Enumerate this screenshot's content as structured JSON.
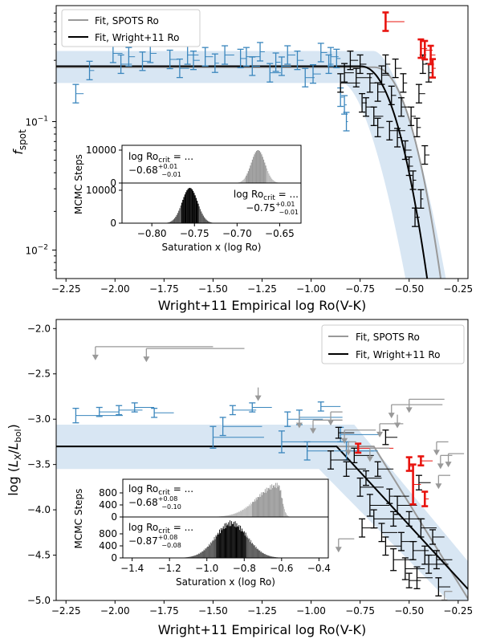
{
  "chart_data": [
    {
      "type": "scatter",
      "panel": "top",
      "xlabel": "Wright+11 Empirical log Ro(V-K)",
      "ylabel": "f_spot",
      "xlim": [
        -2.3,
        -0.2
      ],
      "ylim": [
        0.006,
        0.8
      ],
      "yscale": "log",
      "x_ticks": [
        "-2.25",
        "-2.00",
        "-1.75",
        "-1.50",
        "-1.25",
        "-1.00",
        "-0.75",
        "-0.50",
        "-0.25"
      ],
      "y_ticks": [
        {
          "value": 0.1,
          "label": "10^-1"
        },
        {
          "value": 0.01,
          "label": "10^-2"
        }
      ],
      "legend": {
        "position": "top-left",
        "entries": [
          {
            "label": "Fit, SPOTS Ro",
            "color": "#999999"
          },
          {
            "label": "Fit, Wright+11 Ro",
            "color": "#000000"
          }
        ]
      },
      "colors": {
        "blue": "#3a86bd",
        "black": "#000000",
        "red": "#e8140f",
        "gray": "#999999",
        "band": "#c8dbee"
      },
      "fits": [
        {
          "name": "Fit, SPOTS Ro",
          "color": "#999999",
          "sat": 0.265,
          "x_crit": -0.68,
          "x_end": -0.26
        },
        {
          "name": "Fit, Wright+11 Ro",
          "color": "#000000",
          "sat": 0.27,
          "x_crit": -0.75,
          "x_end": -0.33
        }
      ],
      "band": {
        "low": 0.2,
        "high": 0.355
      },
      "series": [
        {
          "group": "blue",
          "points": [
            [
              -2.2,
              0.165,
              0.1
            ],
            [
              -2.13,
              0.25,
              0.06
            ],
            [
              -2.01,
              0.34,
              0.12
            ],
            [
              -1.93,
              0.32,
              0.08
            ],
            [
              -1.86,
              0.295,
              0.1
            ],
            [
              -1.82,
              0.34,
              0.08
            ],
            [
              -1.72,
              0.305,
              0.1
            ],
            [
              -1.67,
              0.26,
              0.12
            ],
            [
              -1.6,
              0.3,
              0.08
            ],
            [
              -1.54,
              0.32,
              0.1
            ],
            [
              -1.49,
              0.285,
              0.05
            ],
            [
              -1.44,
              0.33,
              0.12
            ],
            [
              -1.36,
              0.31,
              0.08
            ],
            [
              -1.3,
              0.27,
              0.1
            ],
            [
              -1.26,
              0.35,
              0.06
            ],
            [
              -1.21,
              0.24,
              0.14
            ],
            [
              -1.18,
              0.29,
              0.06
            ],
            [
              -1.12,
              0.33,
              0.1
            ],
            [
              -1.07,
              0.3,
              0.08
            ],
            [
              -1.03,
              0.22,
              0.12
            ],
            [
              -0.99,
              0.235,
              0.1
            ],
            [
              -0.95,
              0.345,
              0.08
            ],
            [
              -0.91,
              0.28,
              0.06
            ],
            [
              -0.87,
              0.31,
              0.05
            ],
            [
              -0.85,
              0.155,
              0.04
            ],
            [
              -0.83,
              0.135,
              0.03
            ],
            [
              -0.82,
              0.1,
              0.02
            ],
            [
              -1.97,
              0.28,
              0.14
            ],
            [
              -1.63,
              0.33,
              0.14
            ],
            [
              -1.33,
              0.32,
              0.18
            ],
            [
              -1.15,
              0.27,
              0.12
            ],
            [
              -0.9,
              0.32,
              0.1
            ]
          ]
        },
        {
          "group": "black",
          "points": [
            [
              -0.85,
              0.2,
              0.25
            ],
            [
              -0.83,
              0.24,
              0.12
            ],
            [
              -0.8,
              0.3,
              0.1
            ],
            [
              -0.77,
              0.22,
              0.2
            ],
            [
              -0.75,
              0.28,
              0.08
            ],
            [
              -0.72,
              0.13,
              0.1
            ],
            [
              -0.7,
              0.2,
              0.08
            ],
            [
              -0.68,
              0.11,
              0.12
            ],
            [
              -0.66,
              0.09,
              0.08
            ],
            [
              -0.64,
              0.23,
              0.1
            ],
            [
              -0.62,
              0.28,
              0.06
            ],
            [
              -0.6,
              0.085,
              0.2
            ],
            [
              -0.59,
              0.16,
              0.06
            ],
            [
              -0.57,
              0.26,
              0.08
            ],
            [
              -0.56,
              0.075,
              0.06
            ],
            [
              -0.54,
              0.13,
              0.1
            ],
            [
              -0.53,
              0.2,
              0.05
            ],
            [
              -0.52,
              0.06,
              0.08
            ],
            [
              -0.5,
              0.045,
              0.05
            ],
            [
              -0.49,
              0.11,
              0.06
            ],
            [
              -0.48,
              0.035,
              0.04
            ],
            [
              -0.47,
              0.018,
              0.06
            ],
            [
              -0.46,
              0.09,
              0.05
            ],
            [
              -0.45,
              0.165,
              0.08
            ],
            [
              -0.44,
              0.025,
              0.03
            ],
            [
              -0.43,
              0.28,
              0.05
            ],
            [
              -0.42,
              0.055,
              0.06
            ],
            [
              -0.4,
              0.24,
              0.04
            ],
            [
              -0.74,
              0.14,
              0.06
            ],
            [
              -0.66,
              0.17,
              0.1
            ]
          ]
        },
        {
          "group": "red",
          "points": [
            [
              -0.62,
              0.6,
              0.24
            ],
            [
              -0.44,
              0.37,
              0.08
            ],
            [
              -0.42,
              0.36,
              0.1
            ],
            [
              -0.39,
              0.33,
              0.06
            ],
            [
              -0.38,
              0.26,
              0.04
            ]
          ]
        }
      ],
      "inset": {
        "ylabel": "MCMC Steps",
        "xlabel": "Saturation x (log Ro)",
        "xlim": [
          -0.835,
          -0.625
        ],
        "x_ticks": [
          "-0.80",
          "-0.75",
          "-0.70",
          "-0.65"
        ],
        "y_ticks": [
          "0",
          "10000"
        ],
        "upper": {
          "label": "log Ro_crit = ...",
          "value": "-0.68",
          "plus": "+0.01",
          "minus": "-0.01",
          "color": "#999999",
          "mode": -0.676,
          "sigma": 0.008,
          "lo": -0.69,
          "hi": -0.666
        },
        "lower": {
          "label": "log Ro_crit = ...",
          "value": "-0.75",
          "plus": "+0.01",
          "minus": "-0.01",
          "color": "#000000",
          "mode": -0.756,
          "sigma": 0.009,
          "lo": -0.766,
          "hi": -0.746
        }
      }
    },
    {
      "type": "scatter",
      "panel": "bottom",
      "xlabel": "Wright+11 Empirical log Ro(V-K)",
      "ylabel": "log (L_X/L_bol)",
      "xlim": [
        -2.3,
        -0.2
      ],
      "ylim": [
        -5.0,
        -1.9
      ],
      "x_ticks": [
        "-2.25",
        "-2.00",
        "-1.75",
        "-1.50",
        "-1.25",
        "-1.00",
        "-0.75",
        "-0.50",
        "-0.25"
      ],
      "y_ticks": [
        "-2.0",
        "-2.5",
        "-3.0",
        "-3.5",
        "-4.0",
        "-4.5",
        "-5.0"
      ],
      "legend": {
        "position": "top-right",
        "entries": [
          {
            "label": "Fit, SPOTS Ro",
            "color": "#999999"
          },
          {
            "label": "Fit, Wright+11 Ro",
            "color": "#000000"
          }
        ]
      },
      "fits": [
        {
          "name": "Fit, SPOTS Ro",
          "color": "#999999",
          "sat": -3.3,
          "x_crit": -0.68,
          "x_end": -0.2,
          "slope": -3.5
        },
        {
          "name": "Fit, Wright+11 Ro",
          "color": "#000000",
          "sat": -3.3,
          "x_crit": -0.87,
          "x_end": -0.2,
          "slope": -2.35
        }
      ],
      "band": {
        "low": -3.55,
        "high": -3.06,
        "x_crit": -0.87,
        "x_end": -0.2,
        "slope": -2.35
      },
      "series": [
        {
          "group": "blue",
          "points": [
            [
              -2.2,
              -2.96,
              0.24,
              0.08,
              0.08
            ],
            [
              -2.08,
              -2.92,
              0.1,
              0.05,
              0.05
            ],
            [
              -1.98,
              -2.9,
              0.12,
              0.05,
              0.05
            ],
            [
              -1.9,
              -2.87,
              0.1,
              0.05,
              0.05
            ],
            [
              -1.8,
              -2.93,
              0.1,
              0.05,
              0.05
            ],
            [
              -1.5,
              -3.2,
              0.26,
              0.12,
              0.12
            ],
            [
              -1.45,
              -3.08,
              0.2,
              0.1,
              0.1
            ],
            [
              -1.4,
              -2.9,
              0.12,
              0.05,
              0.05
            ],
            [
              -1.3,
              -2.87,
              0.1,
              0.05,
              0.05
            ],
            [
              -1.15,
              -3.25,
              0.3,
              0.12,
              0.12
            ],
            [
              -1.12,
              -3.0,
              0.18,
              0.08,
              0.08
            ],
            [
              -1.06,
              -2.98,
              0.22,
              0.08,
              0.08
            ],
            [
              -1.02,
              -3.35,
              0.34,
              0.1,
              0.1
            ],
            [
              -0.95,
              -2.86,
              0.1,
              0.05,
              0.05
            ],
            [
              -0.85,
              -3.17,
              0.2,
              0.08,
              0.08
            ],
            [
              -0.82,
              -3.35,
              0.16,
              0.1,
              0.1
            ]
          ]
        },
        {
          "group": "black",
          "points": [
            [
              -0.9,
              -3.45,
              0.1,
              0.1,
              0.1
            ],
            [
              -0.86,
              -3.15,
              0.08,
              0.06,
              0.06
            ],
            [
              -0.82,
              -3.55,
              0.1,
              0.08,
              0.08
            ],
            [
              -0.78,
              -3.4,
              0.1,
              0.08,
              0.08
            ],
            [
              -0.75,
              -3.75,
              0.12,
              0.1,
              0.1
            ],
            [
              -0.72,
              -3.65,
              0.08,
              0.08,
              0.08
            ],
            [
              -0.7,
              -3.95,
              0.1,
              0.12,
              0.12
            ],
            [
              -0.68,
              -4.1,
              0.1,
              0.1,
              0.1
            ],
            [
              -0.66,
              -3.55,
              0.08,
              0.08,
              0.08
            ],
            [
              -0.64,
              -4.25,
              0.08,
              0.1,
              0.1
            ],
            [
              -0.62,
              -4.4,
              0.08,
              0.1,
              0.1
            ],
            [
              -0.6,
              -3.85,
              0.1,
              0.08,
              0.08
            ],
            [
              -0.58,
              -4.55,
              0.1,
              0.12,
              0.12
            ],
            [
              -0.56,
              -3.95,
              0.1,
              0.1,
              0.1
            ],
            [
              -0.54,
              -4.35,
              0.08,
              0.1,
              0.1
            ],
            [
              -0.52,
              -4.65,
              0.1,
              0.12,
              0.12
            ],
            [
              -0.5,
              -4.1,
              0.08,
              0.08,
              0.08
            ],
            [
              -0.48,
              -4.45,
              0.08,
              0.1,
              0.1
            ],
            [
              -0.46,
              -4.75,
              0.08,
              0.12,
              0.12
            ],
            [
              -0.44,
              -4.2,
              0.08,
              0.1,
              0.1
            ],
            [
              -0.42,
              -4.5,
              0.06,
              0.1,
              0.1
            ],
            [
              -0.4,
              -4.6,
              0.1,
              0.1,
              0.1
            ],
            [
              -0.38,
              -4.3,
              0.06,
              0.08,
              0.08
            ],
            [
              -0.36,
              -4.55,
              0.08,
              0.1,
              0.1
            ],
            [
              -0.35,
              -4.85,
              0.06,
              0.1,
              0.1
            ],
            [
              -0.62,
              -3.2,
              0.06,
              0.08,
              0.08
            ],
            [
              -0.45,
              -3.7,
              0.06,
              0.08,
              0.08
            ],
            [
              -0.5,
              -4.78,
              0.06,
              0.08,
              0.08
            ],
            [
              -0.74,
              -4.2,
              0.08,
              0.1,
              0.1
            ],
            [
              -0.58,
              -4.1,
              0.08,
              0.08,
              0.08
            ]
          ]
        },
        {
          "group": "red",
          "points": [
            [
              -0.76,
              -3.32,
              0.18,
              0.05,
              0.05
            ],
            [
              -0.5,
              -3.52,
              0.02,
              0.1,
              0.05
            ],
            [
              -0.48,
              -3.72,
              0.04,
              0.22,
              0.22
            ],
            [
              -0.44,
              -3.46,
              0.06,
              0.05,
              0.05
            ],
            [
              -0.42,
              -3.88,
              0.02,
              0.08,
              0.08
            ]
          ]
        },
        {
          "group": "gray_upper_limits",
          "points": [
            [
              -2.1,
              -2.2,
              0.0,
              0.6
            ],
            [
              -1.84,
              -2.22,
              0.0,
              0.5
            ],
            [
              -1.06,
              -2.95,
              0.0,
              0.0
            ],
            [
              -0.99,
              -3.01,
              0.0,
              0.15
            ],
            [
              -0.9,
              -2.92,
              0.0,
              0.06
            ],
            [
              -1.27,
              -2.65,
              0.0,
              0.0
            ],
            [
              -0.59,
              -2.84,
              0.0,
              0.26
            ],
            [
              -0.83,
              -3.12,
              0.0,
              0.16
            ],
            [
              -0.81,
              -3.25,
              0.0,
              0.04
            ],
            [
              -0.65,
              -3.05,
              0.0,
              0.12
            ],
            [
              -0.36,
              -3.25,
              0.0,
              0.06
            ],
            [
              -0.34,
              -3.4,
              0.0,
              0.06
            ],
            [
              -0.3,
              -3.38,
              0.0,
              0.08
            ],
            [
              -0.5,
              -2.78,
              0.0,
              0.18
            ],
            [
              -0.32,
              -4.9,
              0.0,
              0.04
            ],
            [
              -0.7,
              -3.32,
              0.0,
              0.1
            ],
            [
              -0.56,
              -2.95,
              0.0,
              0.0
            ],
            [
              -0.86,
              -4.32,
              0.0,
              0.08
            ],
            [
              -0.35,
              -3.62,
              0.0,
              0.06
            ]
          ]
        }
      ],
      "inset": {
        "ylabel": "MCMC Steps",
        "xlabel": "Saturation x (log Ro)",
        "xlim": [
          -1.45,
          -0.35
        ],
        "x_ticks": [
          "-1.4",
          "-1.2",
          "-1.0",
          "-0.8",
          "-0.6",
          "-0.4"
        ],
        "y_ticks": [
          "0",
          "400",
          "800"
        ],
        "upper": {
          "label": "log Ro_crit = ...",
          "value": "-0.68",
          "plus": "+0.08",
          "minus": "-0.10",
          "color": "#999999",
          "mode": -0.62,
          "sigma": 0.11,
          "lo": -0.76,
          "hi": -0.59,
          "skew": true
        },
        "lower": {
          "label": "log Ro_crit = ...",
          "value": "-0.87",
          "plus": "+0.08",
          "minus": "-0.08",
          "color": "#000000",
          "mode": -0.87,
          "sigma": 0.085,
          "lo": -0.95,
          "hi": -0.79
        }
      }
    }
  ]
}
